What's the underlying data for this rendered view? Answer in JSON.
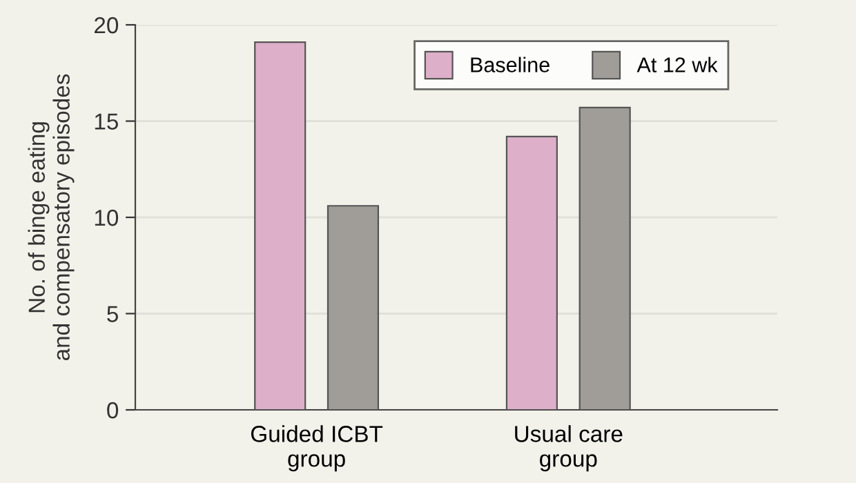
{
  "chart_data": {
    "type": "bar",
    "ylabel": "No. of binge eating\nand compensatory episodes",
    "categories": [
      "Guided ICBT\ngroup",
      "Usual care\ngroup"
    ],
    "series": [
      {
        "name": "Baseline",
        "color": "#ddafc9",
        "values": [
          19.1,
          14.2
        ]
      },
      {
        "name": "At 12 wk",
        "color": "#a09d98",
        "values": [
          10.6,
          15.7
        ]
      }
    ],
    "ylim": [
      0,
      20
    ],
    "yticks": [
      0,
      5,
      10,
      15,
      20
    ],
    "grid": "y",
    "legend": "top right"
  }
}
